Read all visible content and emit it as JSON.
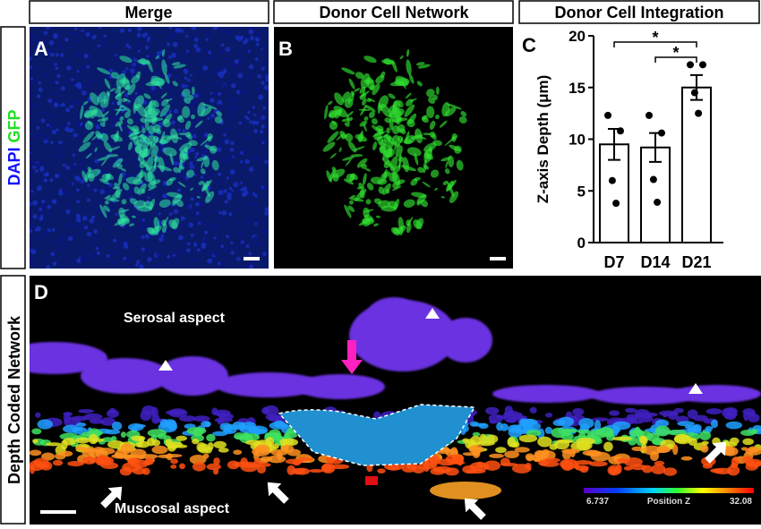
{
  "headers": {
    "merge": "Merge",
    "network": "Donor Cell Network",
    "integration": "Donor Cell Integration"
  },
  "panels": {
    "a": "A",
    "b": "B",
    "c": "C",
    "d": "D"
  },
  "side_labels": {
    "dapi": "DAPI",
    "gfp": "GFP",
    "depth": "Depth Coded Network"
  },
  "annotations": {
    "serosal": "Serosal aspect",
    "mucosal": "Muscosal aspect"
  },
  "colorbar": {
    "min": "6.737",
    "title": "Position Z",
    "max": "32.08"
  },
  "chart_data": {
    "type": "bar",
    "y_label": "Z-axis Depth (μm)",
    "categories": [
      "D7",
      "D14",
      "D21"
    ],
    "values": [
      9.5,
      9.2,
      15
    ],
    "errors": [
      1.5,
      1.4,
      1.2
    ],
    "points": [
      [
        12.3,
        10.8,
        6.0,
        3.8
      ],
      [
        12.3,
        10.6,
        6.1,
        3.9
      ],
      [
        17.2,
        17.2,
        14.5,
        12.5
      ]
    ],
    "significance": [
      "*",
      "*"
    ],
    "color": "#ffffff",
    "ylim": [
      0,
      20
    ],
    "yticks": [
      0,
      5,
      10,
      15,
      20
    ]
  }
}
